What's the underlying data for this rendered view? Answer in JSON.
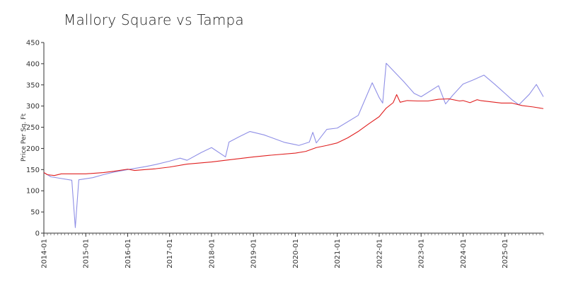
{
  "chart_data": {
    "type": "line",
    "title": "Mallory Square vs Tampa",
    "xlabel": "",
    "ylabel": "Price Per Sq. Ft",
    "ylim": [
      0,
      450
    ],
    "yticks": [
      "0",
      "50",
      "100",
      "150",
      "200",
      "250",
      "300",
      "350",
      "400",
      "450"
    ],
    "xlim": [
      "2014-01",
      "2025-12"
    ],
    "xticks": [
      "2014-01",
      "2015-01",
      "2016-01",
      "2017-01",
      "2018-01",
      "2019-01",
      "2020-01",
      "2021-01",
      "2022-01",
      "2023-01",
      "2024-01",
      "2025-01"
    ],
    "grid": false,
    "series": [
      {
        "color": "#8f8fe6",
        "points": [
          [
            "2014-01",
            143
          ],
          [
            "2014-03",
            133
          ],
          [
            "2014-06",
            129
          ],
          [
            "2014-09",
            125
          ],
          [
            "2014-10",
            13
          ],
          [
            "2014-11",
            126
          ],
          [
            "2015-03",
            131
          ],
          [
            "2015-06",
            138
          ],
          [
            "2015-09",
            144
          ],
          [
            "2016-01",
            150
          ],
          [
            "2016-06",
            157
          ],
          [
            "2016-09",
            162
          ],
          [
            "2017-01",
            170
          ],
          [
            "2017-04",
            177
          ],
          [
            "2017-06",
            172
          ],
          [
            "2017-10",
            190
          ],
          [
            "2018-01",
            202
          ],
          [
            "2018-05",
            180
          ],
          [
            "2018-06",
            215
          ],
          [
            "2018-09",
            228
          ],
          [
            "2018-12",
            240
          ],
          [
            "2019-04",
            232
          ],
          [
            "2019-08",
            220
          ],
          [
            "2019-10",
            214
          ],
          [
            "2020-01",
            209
          ],
          [
            "2020-02",
            207
          ],
          [
            "2020-05",
            215
          ],
          [
            "2020-06",
            238
          ],
          [
            "2020-07",
            213
          ],
          [
            "2020-10",
            245
          ],
          [
            "2021-01",
            248
          ],
          [
            "2021-07",
            278
          ],
          [
            "2021-11",
            355
          ],
          [
            "2022-01",
            320
          ],
          [
            "2022-02",
            307
          ],
          [
            "2022-03",
            401
          ],
          [
            "2022-08",
            358
          ],
          [
            "2022-11",
            330
          ],
          [
            "2023-01",
            322
          ],
          [
            "2023-06",
            348
          ],
          [
            "2023-08",
            305
          ],
          [
            "2023-10",
            325
          ],
          [
            "2024-01",
            352
          ],
          [
            "2024-04",
            362
          ],
          [
            "2024-07",
            373
          ],
          [
            "2024-10",
            352
          ],
          [
            "2025-01",
            330
          ],
          [
            "2025-03",
            315
          ],
          [
            "2025-05",
            303
          ],
          [
            "2025-08",
            328
          ],
          [
            "2025-10",
            351
          ],
          [
            "2025-12",
            322
          ]
        ]
      },
      {
        "color": "#e02020",
        "points": [
          [
            "2014-01",
            143
          ],
          [
            "2014-02",
            138
          ],
          [
            "2014-04",
            136
          ],
          [
            "2014-06",
            140
          ],
          [
            "2015-01",
            140
          ],
          [
            "2015-06",
            143
          ],
          [
            "2015-09",
            146
          ],
          [
            "2016-01",
            151
          ],
          [
            "2016-03",
            148
          ],
          [
            "2016-06",
            150
          ],
          [
            "2016-09",
            152
          ],
          [
            "2017-01",
            156
          ],
          [
            "2017-06",
            163
          ],
          [
            "2018-01",
            168
          ],
          [
            "2018-06",
            173
          ],
          [
            "2019-01",
            180
          ],
          [
            "2019-06",
            184
          ],
          [
            "2020-01",
            189
          ],
          [
            "2020-04",
            193
          ],
          [
            "2020-07",
            202
          ],
          [
            "2020-10",
            207
          ],
          [
            "2021-01",
            213
          ],
          [
            "2021-04",
            225
          ],
          [
            "2021-07",
            240
          ],
          [
            "2021-10",
            258
          ],
          [
            "2022-01",
            275
          ],
          [
            "2022-03",
            295
          ],
          [
            "2022-05",
            308
          ],
          [
            "2022-06",
            327
          ],
          [
            "2022-07",
            309
          ],
          [
            "2022-09",
            313
          ],
          [
            "2022-12",
            312
          ],
          [
            "2023-03",
            312
          ],
          [
            "2023-06",
            316
          ],
          [
            "2023-09",
            317
          ],
          [
            "2023-12",
            312
          ],
          [
            "2024-01",
            313
          ],
          [
            "2024-03",
            308
          ],
          [
            "2024-05",
            315
          ],
          [
            "2024-06",
            313
          ],
          [
            "2024-09",
            310
          ],
          [
            "2024-12",
            307
          ],
          [
            "2025-03",
            307
          ],
          [
            "2025-06",
            301
          ],
          [
            "2025-09",
            298
          ],
          [
            "2025-12",
            294
          ]
        ]
      }
    ]
  }
}
